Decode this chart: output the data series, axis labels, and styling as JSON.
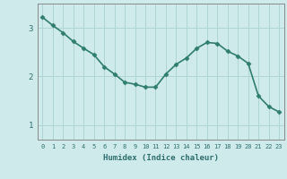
{
  "x": [
    0,
    1,
    2,
    3,
    4,
    5,
    6,
    7,
    8,
    9,
    10,
    11,
    12,
    13,
    14,
    15,
    16,
    17,
    18,
    19,
    20,
    21,
    22,
    23
  ],
  "y": [
    3.22,
    3.05,
    2.9,
    2.72,
    2.58,
    2.45,
    2.2,
    2.05,
    1.88,
    1.84,
    1.78,
    1.78,
    2.05,
    2.25,
    2.38,
    2.58,
    2.7,
    2.68,
    2.52,
    2.42,
    2.27,
    1.6,
    1.38,
    1.27
  ],
  "line_color": "#2e7d6e",
  "marker": "D",
  "marker_size": 2.5,
  "bg_color": "#ceeaea",
  "grid_color": "#afd4d4",
  "xlabel": "Humidex (Indice chaleur)",
  "ylim": [
    0.7,
    3.5
  ],
  "xlim": [
    -0.5,
    23.5
  ],
  "yticks": [
    1,
    2,
    3
  ],
  "xticks": [
    0,
    1,
    2,
    3,
    4,
    5,
    6,
    7,
    8,
    9,
    10,
    11,
    12,
    13,
    14,
    15,
    16,
    17,
    18,
    19,
    20,
    21,
    22,
    23
  ],
  "tick_color": "#2e6e6e",
  "linewidth": 1.2,
  "xlabel_fontsize": 6.5,
  "xtick_fontsize": 5.0,
  "ytick_fontsize": 6.5
}
